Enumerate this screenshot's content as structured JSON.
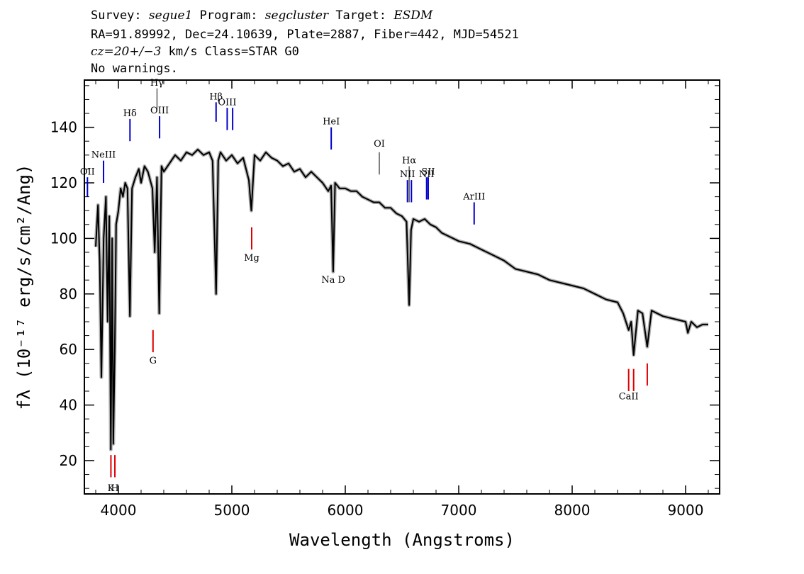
{
  "header": {
    "survey_label": "Survey: ",
    "survey": "segue1",
    "program_label": " Program: ",
    "program": "segcluster",
    "target_label": " Target: ",
    "target": "ESDM",
    "line2": "RA=91.89992, Dec=24.10639, Plate=2887, Fiber=442, MJD=54521",
    "cz": "cz=20+/−3",
    "cz_rest": " km/s Class=STAR G0",
    "line4": "No warnings."
  },
  "chart_data": {
    "type": "line",
    "xlabel": "Wavelength (Angstroms)",
    "ylabel": "fλ (10⁻¹⁷ erg/s/cm²/Ang)",
    "xlim": [
      3700,
      9300
    ],
    "ylim": [
      8,
      157
    ],
    "x_ticks": [
      4000,
      5000,
      6000,
      7000,
      8000,
      9000
    ],
    "y_ticks": [
      20,
      40,
      60,
      80,
      100,
      120,
      140
    ],
    "series": [
      {
        "color": "#000000",
        "x": [
          3800,
          3820,
          3835,
          3850,
          3870,
          3890,
          3905,
          3920,
          3933,
          3945,
          3955,
          3968,
          3980,
          4000,
          4020,
          4040,
          4060,
          4080,
          4101,
          4120,
          4150,
          4180,
          4200,
          4230,
          4260,
          4300,
          4320,
          4340,
          4360,
          4380,
          4400,
          4450,
          4500,
          4550,
          4600,
          4650,
          4700,
          4750,
          4800,
          4830,
          4861,
          4880,
          4900,
          4950,
          5000,
          5050,
          5100,
          5150,
          5172,
          5200,
          5250,
          5300,
          5350,
          5400,
          5450,
          5500,
          5550,
          5600,
          5650,
          5700,
          5750,
          5800,
          5850,
          5875,
          5893,
          5910,
          5950,
          6000,
          6050,
          6100,
          6150,
          6200,
          6250,
          6300,
          6350,
          6400,
          6450,
          6500,
          6540,
          6563,
          6580,
          6600,
          6650,
          6700,
          6750,
          6800,
          6850,
          6900,
          6950,
          7000,
          7100,
          7200,
          7300,
          7400,
          7500,
          7600,
          7700,
          7800,
          7900,
          8000,
          8100,
          8200,
          8300,
          8400,
          8450,
          8498,
          8520,
          8542,
          8580,
          8620,
          8662,
          8700,
          8800,
          8900,
          9000,
          9020,
          9050,
          9100,
          9150,
          9200
        ],
        "y": [
          97,
          112,
          92,
          50,
          100,
          115,
          70,
          108,
          24,
          100,
          26,
          60,
          105,
          110,
          118,
          115,
          120,
          118,
          72,
          118,
          122,
          125,
          120,
          126,
          124,
          118,
          95,
          122,
          73,
          126,
          124,
          127,
          130,
          128,
          131,
          130,
          132,
          130,
          131,
          128,
          80,
          128,
          131,
          128,
          130,
          127,
          129,
          121,
          110,
          130,
          128,
          131,
          129,
          128,
          126,
          127,
          124,
          125,
          122,
          124,
          122,
          120,
          117,
          119,
          88,
          120,
          118,
          118,
          117,
          117,
          115,
          114,
          113,
          113,
          111,
          111,
          109,
          108,
          106,
          76,
          103,
          107,
          106,
          107,
          105,
          104,
          102,
          101,
          100,
          99,
          98,
          96,
          94,
          92,
          89,
          88,
          87,
          85,
          84,
          83,
          82,
          80,
          78,
          77,
          73,
          67,
          70,
          58,
          74,
          73,
          61,
          74,
          72,
          71,
          70,
          66,
          70,
          68,
          69,
          69
        ]
      }
    ],
    "line_markers": [
      {
        "label": "OII",
        "wave": 3727,
        "color": "#0000cc",
        "bottom": 115,
        "top": 122,
        "label_y": 123
      },
      {
        "label": "NeIII",
        "wave": 3869,
        "color": "#0000cc",
        "bottom": 120,
        "top": 128,
        "label_y": 129
      },
      {
        "label": "Hδ",
        "wave": 4102,
        "color": "#0000cc",
        "bottom": 135,
        "top": 143,
        "label_y": 144
      },
      {
        "label": "Hγ",
        "wave": 4340,
        "color": "#000000",
        "bottom": 146,
        "top": 154,
        "label_y": 155
      },
      {
        "label": "OIII",
        "wave": 4363,
        "color": "#0000cc",
        "bottom": 136,
        "top": 144,
        "label_y": 145
      },
      {
        "label": "Hβ",
        "wave": 4861,
        "color": "#0000cc",
        "bottom": 142,
        "top": 149,
        "label_y": 150
      },
      {
        "label": "OIII",
        "wave": 4959,
        "color": "#0000cc",
        "bottom": 139,
        "top": 147,
        "label_y": 148
      },
      {
        "label": "",
        "wave": 5007,
        "color": "#0000cc",
        "bottom": 139,
        "top": 147,
        "label_y": 148
      },
      {
        "label": "HeI",
        "wave": 5876,
        "color": "#0000cc",
        "bottom": 132,
        "top": 140,
        "label_y": 141
      },
      {
        "label": "OI",
        "wave": 6300,
        "color": "#000000",
        "bottom": 123,
        "top": 131,
        "label_y": 133
      },
      {
        "label": "NII",
        "wave": 6548,
        "color": "#0000cc",
        "bottom": 113,
        "top": 121,
        "label_y": 122
      },
      {
        "label": "Hα",
        "wave": 6563,
        "color": "#000000",
        "bottom": 113,
        "top": 126,
        "label_y": 127
      },
      {
        "label": "",
        "wave": 6583,
        "color": "#0000cc",
        "bottom": 113,
        "top": 121,
        "label_y": 122
      },
      {
        "label": "NII",
        "wave": 6717,
        "color": "#0000cc",
        "bottom": 114,
        "top": 122,
        "label_y": 122
      },
      {
        "label": "SII",
        "wave": 6731,
        "color": "#0000cc",
        "bottom": 114,
        "top": 122,
        "label_y": 123
      },
      {
        "label": "ArIII",
        "wave": 7136,
        "color": "#0000cc",
        "bottom": 105,
        "top": 113,
        "label_y": 114
      },
      {
        "label": "Mg",
        "wave": 5175,
        "color": "#dd0000",
        "bottom": 96,
        "top": 104,
        "label_y": 92
      },
      {
        "label": "Na D",
        "wave": 5894,
        "color": "#dd0000",
        "bottom": 88,
        "top": 96,
        "label_y": 84
      },
      {
        "label": "G",
        "wave": 4305,
        "color": "#dd0000",
        "bottom": 59,
        "top": 67,
        "label_y": 55
      },
      {
        "label": "K",
        "wave": 3934,
        "color": "#dd0000",
        "bottom": 14,
        "top": 22,
        "label_y": 9
      },
      {
        "label": "H",
        "wave": 3969,
        "color": "#dd0000",
        "bottom": 14,
        "top": 22,
        "label_y": 9
      },
      {
        "label": "CaII",
        "wave": 8498,
        "color": "#dd0000",
        "bottom": 45,
        "top": 53,
        "label_y": 42
      },
      {
        "label": "",
        "wave": 8542,
        "color": "#dd0000",
        "bottom": 45,
        "top": 53,
        "label_y": 42
      },
      {
        "label": "",
        "wave": 8662,
        "color": "#dd0000",
        "bottom": 47,
        "top": 55,
        "label_y": 42
      }
    ]
  }
}
